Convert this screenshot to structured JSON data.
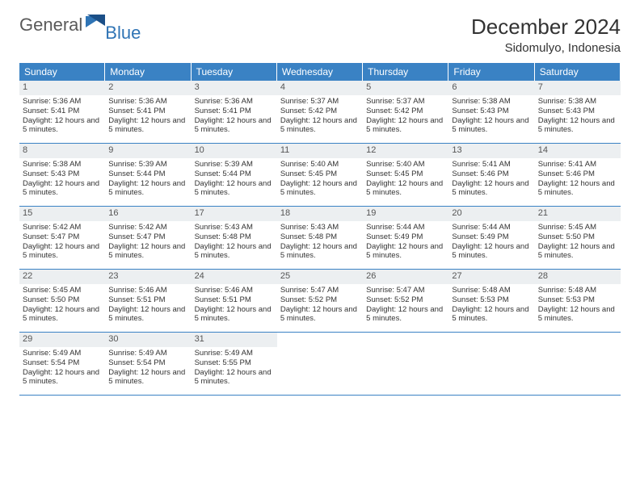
{
  "logo": {
    "general": "General",
    "blue": "Blue"
  },
  "title": "December 2024",
  "location": "Sidomulyo, Indonesia",
  "colors": {
    "header_bg": "#3a82c4",
    "header_text": "#ffffff",
    "daynum_bg": "#eceff1",
    "daynum_text": "#555555",
    "border": "#3a82c4",
    "logo_gray": "#5a5a5a",
    "logo_blue": "#2f74b5"
  },
  "weekdays": [
    "Sunday",
    "Monday",
    "Tuesday",
    "Wednesday",
    "Thursday",
    "Friday",
    "Saturday"
  ],
  "weeks": [
    [
      {
        "n": 1,
        "sr": "5:36 AM",
        "ss": "5:41 PM",
        "dl": "12 hours and 5 minutes."
      },
      {
        "n": 2,
        "sr": "5:36 AM",
        "ss": "5:41 PM",
        "dl": "12 hours and 5 minutes."
      },
      {
        "n": 3,
        "sr": "5:36 AM",
        "ss": "5:41 PM",
        "dl": "12 hours and 5 minutes."
      },
      {
        "n": 4,
        "sr": "5:37 AM",
        "ss": "5:42 PM",
        "dl": "12 hours and 5 minutes."
      },
      {
        "n": 5,
        "sr": "5:37 AM",
        "ss": "5:42 PM",
        "dl": "12 hours and 5 minutes."
      },
      {
        "n": 6,
        "sr": "5:38 AM",
        "ss": "5:43 PM",
        "dl": "12 hours and 5 minutes."
      },
      {
        "n": 7,
        "sr": "5:38 AM",
        "ss": "5:43 PM",
        "dl": "12 hours and 5 minutes."
      }
    ],
    [
      {
        "n": 8,
        "sr": "5:38 AM",
        "ss": "5:43 PM",
        "dl": "12 hours and 5 minutes."
      },
      {
        "n": 9,
        "sr": "5:39 AM",
        "ss": "5:44 PM",
        "dl": "12 hours and 5 minutes."
      },
      {
        "n": 10,
        "sr": "5:39 AM",
        "ss": "5:44 PM",
        "dl": "12 hours and 5 minutes."
      },
      {
        "n": 11,
        "sr": "5:40 AM",
        "ss": "5:45 PM",
        "dl": "12 hours and 5 minutes."
      },
      {
        "n": 12,
        "sr": "5:40 AM",
        "ss": "5:45 PM",
        "dl": "12 hours and 5 minutes."
      },
      {
        "n": 13,
        "sr": "5:41 AM",
        "ss": "5:46 PM",
        "dl": "12 hours and 5 minutes."
      },
      {
        "n": 14,
        "sr": "5:41 AM",
        "ss": "5:46 PM",
        "dl": "12 hours and 5 minutes."
      }
    ],
    [
      {
        "n": 15,
        "sr": "5:42 AM",
        "ss": "5:47 PM",
        "dl": "12 hours and 5 minutes."
      },
      {
        "n": 16,
        "sr": "5:42 AM",
        "ss": "5:47 PM",
        "dl": "12 hours and 5 minutes."
      },
      {
        "n": 17,
        "sr": "5:43 AM",
        "ss": "5:48 PM",
        "dl": "12 hours and 5 minutes."
      },
      {
        "n": 18,
        "sr": "5:43 AM",
        "ss": "5:48 PM",
        "dl": "12 hours and 5 minutes."
      },
      {
        "n": 19,
        "sr": "5:44 AM",
        "ss": "5:49 PM",
        "dl": "12 hours and 5 minutes."
      },
      {
        "n": 20,
        "sr": "5:44 AM",
        "ss": "5:49 PM",
        "dl": "12 hours and 5 minutes."
      },
      {
        "n": 21,
        "sr": "5:45 AM",
        "ss": "5:50 PM",
        "dl": "12 hours and 5 minutes."
      }
    ],
    [
      {
        "n": 22,
        "sr": "5:45 AM",
        "ss": "5:50 PM",
        "dl": "12 hours and 5 minutes."
      },
      {
        "n": 23,
        "sr": "5:46 AM",
        "ss": "5:51 PM",
        "dl": "12 hours and 5 minutes."
      },
      {
        "n": 24,
        "sr": "5:46 AM",
        "ss": "5:51 PM",
        "dl": "12 hours and 5 minutes."
      },
      {
        "n": 25,
        "sr": "5:47 AM",
        "ss": "5:52 PM",
        "dl": "12 hours and 5 minutes."
      },
      {
        "n": 26,
        "sr": "5:47 AM",
        "ss": "5:52 PM",
        "dl": "12 hours and 5 minutes."
      },
      {
        "n": 27,
        "sr": "5:48 AM",
        "ss": "5:53 PM",
        "dl": "12 hours and 5 minutes."
      },
      {
        "n": 28,
        "sr": "5:48 AM",
        "ss": "5:53 PM",
        "dl": "12 hours and 5 minutes."
      }
    ],
    [
      {
        "n": 29,
        "sr": "5:49 AM",
        "ss": "5:54 PM",
        "dl": "12 hours and 5 minutes."
      },
      {
        "n": 30,
        "sr": "5:49 AM",
        "ss": "5:54 PM",
        "dl": "12 hours and 5 minutes."
      },
      {
        "n": 31,
        "sr": "5:49 AM",
        "ss": "5:55 PM",
        "dl": "12 hours and 5 minutes."
      },
      null,
      null,
      null,
      null
    ]
  ],
  "labels": {
    "sunrise": "Sunrise:",
    "sunset": "Sunset:",
    "daylight": "Daylight:"
  }
}
